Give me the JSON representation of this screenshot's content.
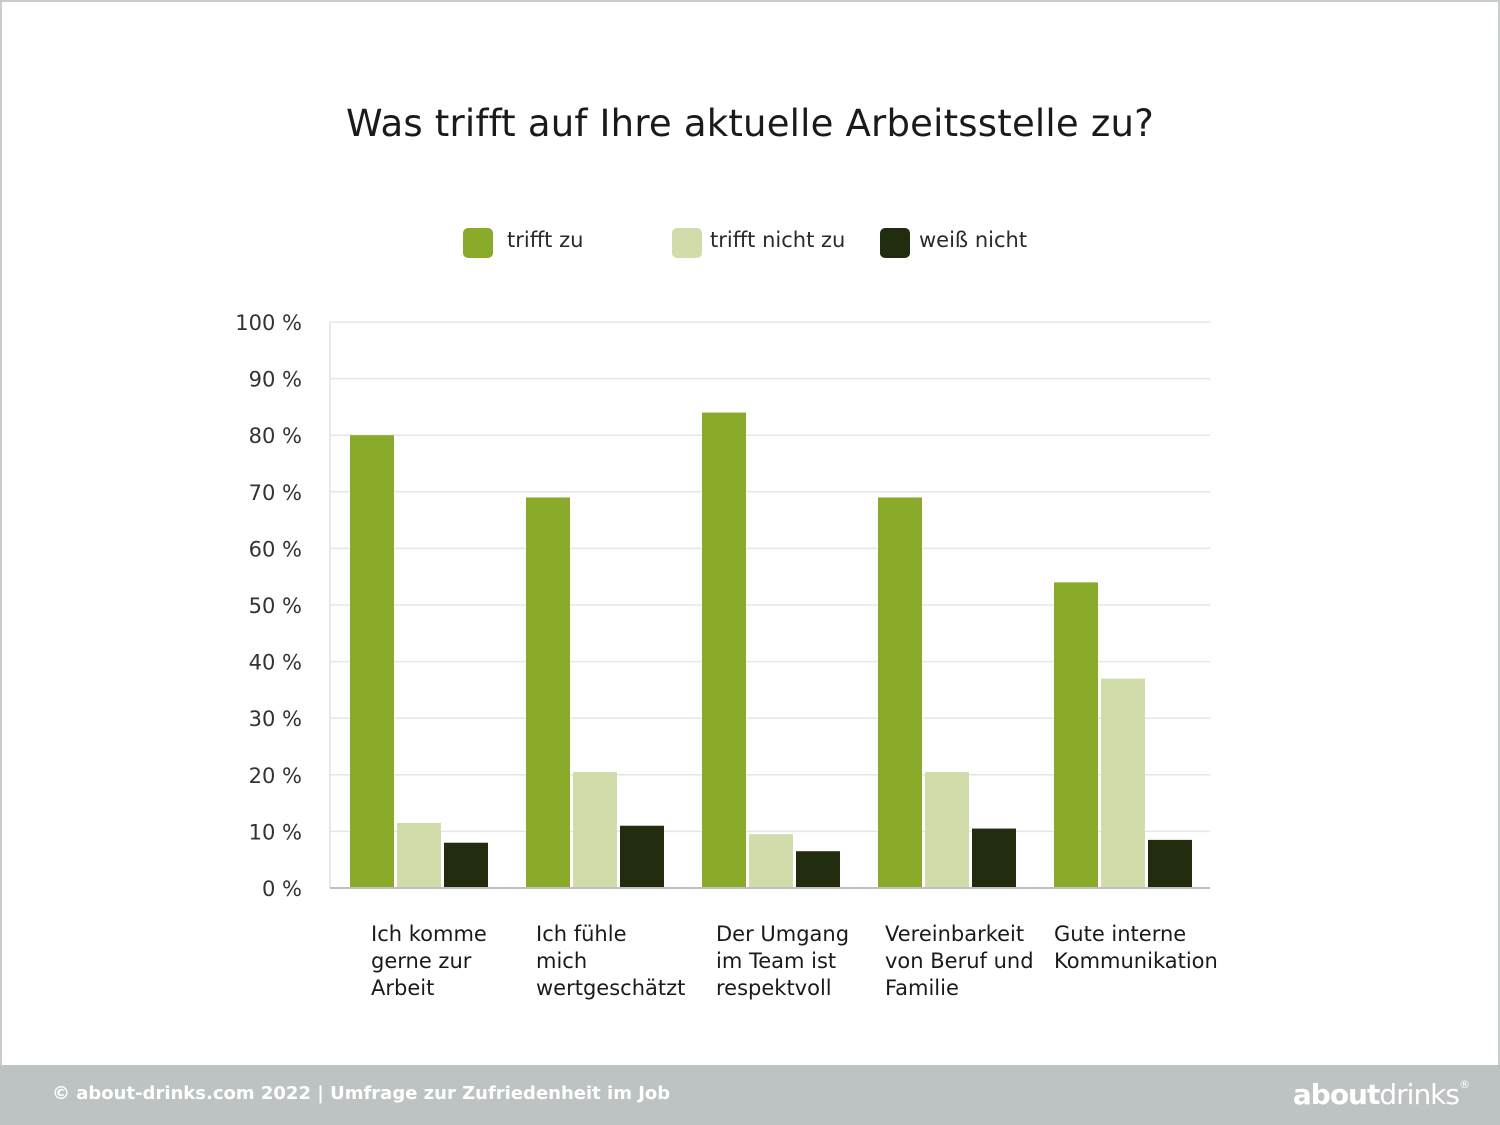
{
  "chart_data": {
    "type": "bar",
    "title": "Was trifft auf Ihre aktuelle Arbeitsstelle zu?",
    "categories": [
      [
        "Ich komme",
        "gerne zur",
        "Arbeit"
      ],
      [
        "Ich fühle",
        "mich",
        "wertgeschätzt"
      ],
      [
        "Der Umgang",
        "im Team ist",
        "respektvoll"
      ],
      [
        "Vereinbarkeit",
        "von Beruf und",
        "Familie"
      ],
      [
        "Gute interne",
        "Kommunikation"
      ]
    ],
    "series": [
      {
        "name": "trifft zu",
        "color": "#8aab2a",
        "values": [
          80,
          69,
          84,
          69,
          54
        ]
      },
      {
        "name": "trifft nicht zu",
        "color": "#d0dca9",
        "values": [
          11.5,
          20.5,
          9.5,
          20.5,
          37
        ]
      },
      {
        "name": "weiß nicht",
        "color": "#222c0e",
        "values": [
          8,
          11,
          6.5,
          10.5,
          8.5
        ]
      }
    ],
    "y_ticks": [
      "0 %",
      "10 %",
      "20 %",
      "30 %",
      "40 %",
      "50 %",
      "60 %",
      "70 %",
      "80 %",
      "90 %",
      "100 %"
    ],
    "ylim": [
      0,
      100
    ],
    "grid": true,
    "legend": "top-center"
  },
  "footer": {
    "text": "© about-drinks.com 2022  |  Umfrage zur Zufriedenheit im Job",
    "logo_bold": "about",
    "logo_regular": "drinks",
    "logo_mark": "®"
  }
}
